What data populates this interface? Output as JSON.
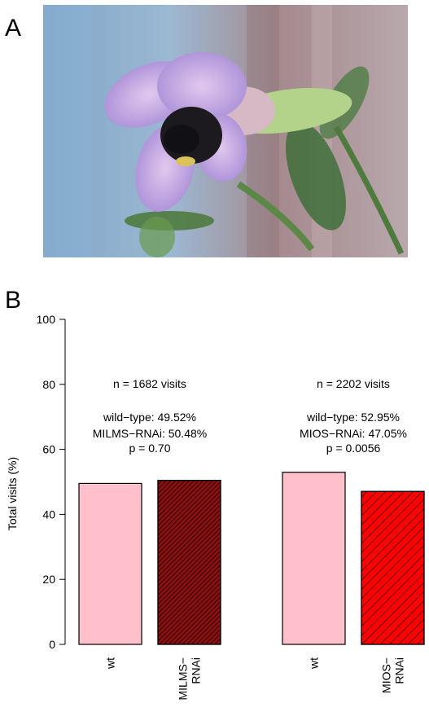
{
  "panels": {
    "a_label": "A",
    "b_label": "B"
  },
  "photo": {
    "description_icon": "flower-photo"
  },
  "colors": {
    "wt": "#ffc0cb",
    "milms": "#8b1010",
    "mios": "#ff0000",
    "hatch": "#000000"
  },
  "chart_data": {
    "type": "bar",
    "ylabel": "Total visits (%)",
    "ylim": [
      0,
      100
    ],
    "yticks": [
      0,
      20,
      40,
      60,
      80,
      100
    ],
    "groups": [
      {
        "bars": [
          {
            "label": "wt",
            "label_lines": [
              "wt"
            ],
            "value": 49.52,
            "pattern": "none",
            "color": "#ffc0cb"
          },
          {
            "label": "MILMS−RNAi",
            "label_lines": [
              "MILMS−",
              "RNAi"
            ],
            "value": 50.48,
            "pattern": "dense",
            "color": "#8b1010"
          }
        ],
        "annotations": [
          "n = 1682 visits",
          "wild−type: 49.52%",
          "MILMS−RNAi: 50.48%",
          "p = 0.70"
        ]
      },
      {
        "bars": [
          {
            "label": "wt",
            "label_lines": [
              "wt"
            ],
            "value": 52.95,
            "pattern": "none",
            "color": "#ffc0cb"
          },
          {
            "label": "MIOS−RNAi",
            "label_lines": [
              "MIOS−",
              "RNAi"
            ],
            "value": 47.05,
            "pattern": "sparse",
            "color": "#ff0000"
          }
        ],
        "annotations": [
          "n = 2202 visits",
          "wild−type: 52.95%",
          "MIOS−RNAi: 47.05%",
          "p = 0.0056"
        ]
      }
    ]
  }
}
